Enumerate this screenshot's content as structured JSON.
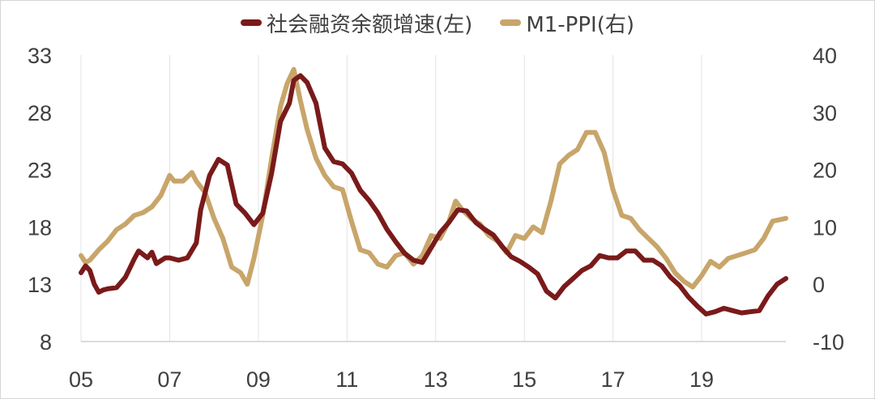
{
  "chart_data": {
    "type": "line",
    "title": "",
    "xlabel": "",
    "ylabel_left": "",
    "ylabel_right": "",
    "x_ticks": [
      "05",
      "07",
      "09",
      "11",
      "13",
      "15",
      "17",
      "19"
    ],
    "x_tick_years": [
      2005,
      2007,
      2009,
      2011,
      2013,
      2015,
      2017,
      2019
    ],
    "xlim": [
      2005.0,
      2020.9
    ],
    "y_left": {
      "ticks": [
        "33",
        "28",
        "23",
        "18",
        "13",
        "8"
      ],
      "ylim": [
        8,
        33
      ]
    },
    "y_right": {
      "ticks": [
        "40",
        "30",
        "20",
        "10",
        "0",
        "-10"
      ],
      "ylim": [
        -10,
        40
      ]
    },
    "grid": "vertical",
    "legend_position": "top",
    "series": [
      {
        "name": "社会融资余额增速(左)",
        "axis": "left",
        "color": "#7a1a1a",
        "x": [
          2005.0,
          2005.1,
          2005.2,
          2005.3,
          2005.4,
          2005.5,
          2005.6,
          2005.8,
          2006.0,
          2006.1,
          2006.2,
          2006.3,
          2006.5,
          2006.6,
          2006.7,
          2006.9,
          2007.0,
          2007.2,
          2007.4,
          2007.6,
          2007.7,
          2007.9,
          2008.1,
          2008.3,
          2008.5,
          2008.7,
          2008.9,
          2009.1,
          2009.3,
          2009.5,
          2009.7,
          2009.8,
          2009.95,
          2010.1,
          2010.3,
          2010.5,
          2010.7,
          2010.9,
          2011.1,
          2011.3,
          2011.5,
          2011.7,
          2011.9,
          2012.1,
          2012.3,
          2012.5,
          2012.7,
          2012.9,
          2013.1,
          2013.3,
          2013.5,
          2013.7,
          2013.9,
          2014.1,
          2014.3,
          2014.5,
          2014.7,
          2014.9,
          2015.1,
          2015.3,
          2015.5,
          2015.7,
          2015.9,
          2016.1,
          2016.3,
          2016.5,
          2016.7,
          2016.9,
          2017.1,
          2017.3,
          2017.5,
          2017.7,
          2017.9,
          2018.1,
          2018.3,
          2018.5,
          2018.7,
          2018.9,
          2019.1,
          2019.3,
          2019.5,
          2019.7,
          2019.9,
          2020.1,
          2020.3,
          2020.5,
          2020.7,
          2020.9
        ],
        "values": [
          14.0,
          14.6,
          14.2,
          13.0,
          12.3,
          12.5,
          12.6,
          12.7,
          13.6,
          14.4,
          15.2,
          15.9,
          15.3,
          15.8,
          14.8,
          15.3,
          15.3,
          15.1,
          15.3,
          16.6,
          19.5,
          22.5,
          23.9,
          23.4,
          20.0,
          19.2,
          18.2,
          19.2,
          22.7,
          27.2,
          28.8,
          30.8,
          31.2,
          30.6,
          28.8,
          24.9,
          23.7,
          23.5,
          22.7,
          21.2,
          20.3,
          19.2,
          17.8,
          16.7,
          15.7,
          15.1,
          14.9,
          16.2,
          17.5,
          18.4,
          19.5,
          19.4,
          18.4,
          17.8,
          17.3,
          16.3,
          15.4,
          15.0,
          14.5,
          13.9,
          12.4,
          11.8,
          12.8,
          13.5,
          14.2,
          14.6,
          15.5,
          15.3,
          15.3,
          15.9,
          15.9,
          15.1,
          15.1,
          14.6,
          13.6,
          12.9,
          11.9,
          11.1,
          10.4,
          10.6,
          10.9,
          10.7,
          10.5,
          10.6,
          10.7,
          12.0,
          13.0,
          13.5
        ]
      },
      {
        "name": "M1-PPI(右)",
        "axis": "right",
        "color": "#c8a56a",
        "x": [
          2005.0,
          2005.1,
          2005.2,
          2005.4,
          2005.6,
          2005.8,
          2006.0,
          2006.2,
          2006.4,
          2006.6,
          2006.8,
          2007.0,
          2007.1,
          2007.3,
          2007.5,
          2007.6,
          2007.8,
          2008.0,
          2008.2,
          2008.4,
          2008.6,
          2008.75,
          2008.9,
          2009.1,
          2009.3,
          2009.5,
          2009.65,
          2009.8,
          2009.95,
          2010.1,
          2010.3,
          2010.5,
          2010.7,
          2010.9,
          2011.1,
          2011.3,
          2011.5,
          2011.7,
          2011.9,
          2012.1,
          2012.3,
          2012.5,
          2012.7,
          2012.9,
          2013.1,
          2013.3,
          2013.45,
          2013.6,
          2013.8,
          2014.0,
          2014.2,
          2014.4,
          2014.6,
          2014.8,
          2015.0,
          2015.2,
          2015.4,
          2015.6,
          2015.8,
          2016.0,
          2016.2,
          2016.4,
          2016.6,
          2016.8,
          2017.0,
          2017.2,
          2017.4,
          2017.6,
          2017.8,
          2018.0,
          2018.2,
          2018.4,
          2018.6,
          2018.8,
          2019.0,
          2019.2,
          2019.4,
          2019.6,
          2019.8,
          2020.0,
          2020.2,
          2020.4,
          2020.6,
          2020.9
        ],
        "values": [
          5.0,
          3.8,
          4.2,
          6.0,
          7.5,
          9.5,
          10.5,
          12.0,
          12.5,
          13.5,
          15.5,
          19.0,
          18.0,
          18.0,
          19.5,
          18.0,
          16.0,
          11.5,
          8.0,
          3.0,
          2.0,
          0.0,
          4.5,
          12.0,
          22.0,
          31.0,
          35.0,
          37.5,
          32.0,
          27.0,
          22.0,
          19.0,
          17.0,
          16.5,
          11.0,
          6.0,
          5.5,
          3.5,
          3.0,
          5.0,
          5.5,
          3.5,
          5.0,
          8.5,
          8.0,
          11.0,
          14.5,
          13.0,
          11.5,
          10.5,
          8.5,
          7.5,
          5.5,
          8.5,
          8.0,
          10.0,
          9.0,
          14.5,
          21.0,
          22.5,
          23.5,
          26.5,
          26.5,
          23.0,
          16.5,
          12.0,
          11.5,
          9.5,
          8.0,
          6.5,
          4.5,
          2.0,
          0.5,
          -0.5,
          1.5,
          4.0,
          3.0,
          4.5,
          5.0,
          5.5,
          6.0,
          8.0,
          11.0,
          11.5
        ]
      }
    ]
  }
}
